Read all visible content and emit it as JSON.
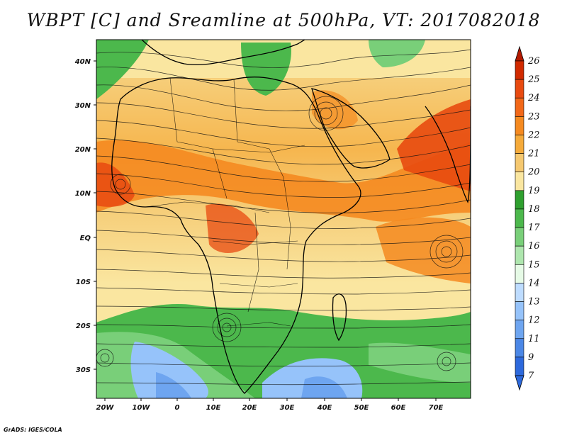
{
  "title": "WBPT [C] and Sreamline at 500hPa, VT: 2017082018",
  "credit": "GrADS: IGES/COLA",
  "map": {
    "lon_labels": [
      "20W",
      "10W",
      "0",
      "10E",
      "20E",
      "30E",
      "40E",
      "50E",
      "60E",
      "70E"
    ],
    "lat_labels": [
      "40N",
      "30N",
      "20N",
      "10N",
      "EQ",
      "10S",
      "20S",
      "30S"
    ]
  },
  "colorbar": {
    "labels": [
      "26",
      "25",
      "24",
      "23",
      "22",
      "21",
      "20",
      "19",
      "18",
      "17",
      "16",
      "15",
      "14",
      "13",
      "12",
      "11",
      "9",
      "7"
    ],
    "colors": [
      "#b41a00",
      "#d12a00",
      "#e84a10",
      "#f26818",
      "#f58a20",
      "#f5aa3a",
      "#f5c870",
      "#fae6a0",
      "#2fa02f",
      "#4cb84c",
      "#79cf79",
      "#aee6ae",
      "#e6fae6",
      "#bedcff",
      "#96c3fa",
      "#6ea5f0",
      "#4b87e6",
      "#2d69dc"
    ]
  }
}
